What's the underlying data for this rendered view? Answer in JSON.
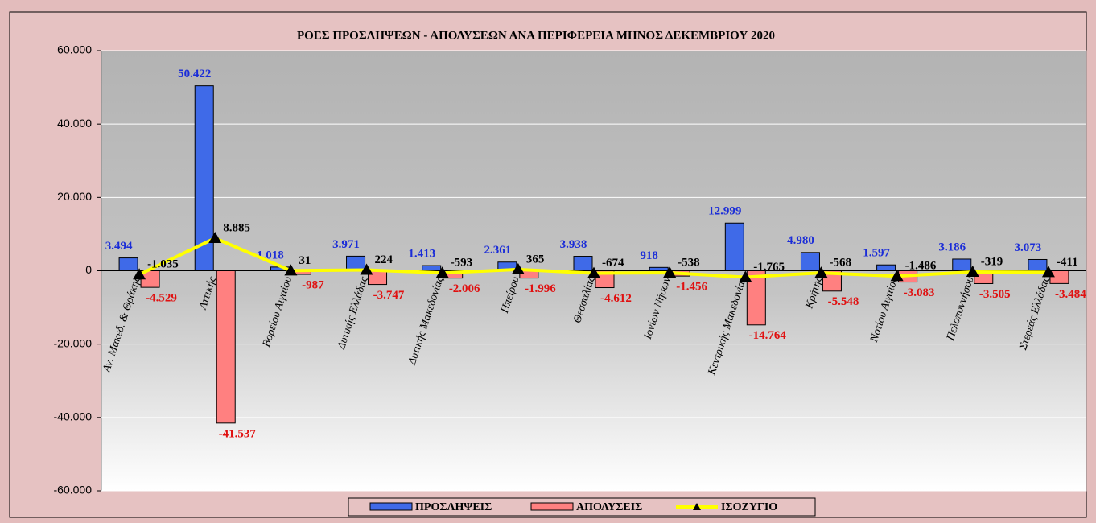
{
  "chart_data": {
    "type": "bar",
    "title": "ΡΟΕΣ ΠΡΟΣΛΗΨΕΩΝ - ΑΠΟΛΥΣΕΩΝ ΑΝΑ ΠΕΡΙΦΕΡΕΙΑ ΜΗΝΟΣ  ΔΕΚΕΜΒΡΙΟΥ  2020",
    "categories": [
      "Αν. Μακεδ. & Θράκης",
      "Αττικής",
      "Βορείου Αιγαίου",
      "Δυτικής Ελλάδας",
      "Δυτικής Μακεδονίας",
      "Ηπείρου",
      "Θεσσαλίας",
      "Ιονίων Νήσων",
      "Κεντρικής Μακεδονίας",
      "Κρήτης",
      "Νοτίου Αιγαίου",
      "Πελοποννήσου",
      "Στερεάς Ελλάδας"
    ],
    "series": [
      {
        "name": "ΠΡΟΣΛΗΨΕΙΣ",
        "type": "bar",
        "color": "#3f6ae8",
        "label_color": "#1a2cd8",
        "values": [
          3494,
          50422,
          1018,
          3971,
          1413,
          2361,
          3938,
          918,
          12999,
          4980,
          1597,
          3186,
          3073
        ],
        "value_labels": [
          "3.494",
          "50.422",
          "1.018",
          "3.971",
          "1.413",
          "2.361",
          "3.938",
          "918",
          "12.999",
          "4.980",
          "1.597",
          "3.186",
          "3.073"
        ]
      },
      {
        "name": "ΑΠΟΛΥΣΕΙΣ",
        "type": "bar",
        "color": "#ff8080",
        "label_color": "#e01010",
        "values": [
          -4529,
          -41537,
          -987,
          -3747,
          -2006,
          -1996,
          -4612,
          -1456,
          -14764,
          -5548,
          -3083,
          -3505,
          -3484
        ],
        "value_labels": [
          "-4.529",
          "-41.537",
          "-987",
          "-3.747",
          "-2.006",
          "-1.996",
          "-4.612",
          "-1.456",
          "-14.764",
          "-5.548",
          "-3.083",
          "-3.505",
          "-3.484"
        ]
      },
      {
        "name": "ΙΣΟΖΥΓΙΟ",
        "type": "line",
        "color": "#ffff00",
        "label_color": "#000000",
        "values": [
          -1035,
          8885,
          31,
          224,
          -593,
          365,
          -674,
          -538,
          -1765,
          -568,
          -1486,
          -319,
          -411
        ],
        "value_labels": [
          "-1.035",
          "8.885",
          "31",
          "224",
          "-593",
          "365",
          "-674",
          "-538",
          "-1.765",
          "-568",
          "-1.486",
          "-319",
          "-411"
        ]
      }
    ],
    "ylim": [
      -60000,
      60000
    ],
    "yticks": [
      {
        "value": -60000,
        "label": "-60.000"
      },
      {
        "value": -40000,
        "label": "-40.000"
      },
      {
        "value": -20000,
        "label": "-20.000"
      },
      0,
      {
        "value": 20000,
        "label": "20.000"
      },
      {
        "value": 40000,
        "label": "40.000"
      },
      {
        "value": 60000,
        "label": "60.000"
      }
    ],
    "grid": true,
    "legend": "bottom"
  }
}
